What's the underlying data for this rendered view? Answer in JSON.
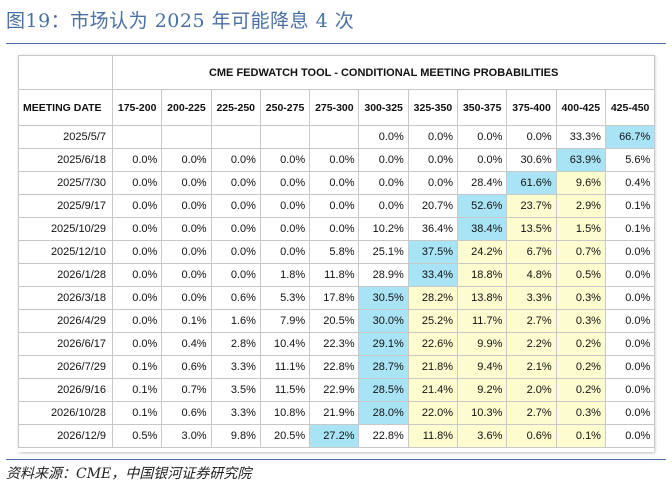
{
  "figure": {
    "title": "图19：市场认为 2025 年可能降息 4 次",
    "source": "资料来源：CME，中国银河证券研究院"
  },
  "table": {
    "group_header": "CME FEDWATCH TOOL - CONDITIONAL MEETING PROBABILITIES",
    "date_header": "MEETING DATE",
    "columns": [
      "175-200",
      "200-225",
      "225-250",
      "250-275",
      "275-300",
      "300-325",
      "325-350",
      "350-375",
      "375-400",
      "400-425",
      "425-450"
    ],
    "rows": [
      {
        "date": "2025/5/7",
        "values": [
          "",
          "",
          "",
          "",
          "",
          "0.0%",
          "0.0%",
          "0.0%",
          "0.0%",
          "33.3%",
          "66.7%"
        ],
        "max_col": 10
      },
      {
        "date": "2025/6/18",
        "values": [
          "0.0%",
          "0.0%",
          "0.0%",
          "0.0%",
          "0.0%",
          "0.0%",
          "0.0%",
          "0.0%",
          "30.6%",
          "63.9%",
          "5.6%"
        ],
        "max_col": 9
      },
      {
        "date": "2025/7/30",
        "values": [
          "0.0%",
          "0.0%",
          "0.0%",
          "0.0%",
          "0.0%",
          "0.0%",
          "0.0%",
          "28.4%",
          "61.6%",
          "9.6%",
          "0.4%"
        ],
        "max_col": 8
      },
      {
        "date": "2025/9/17",
        "values": [
          "0.0%",
          "0.0%",
          "0.0%",
          "0.0%",
          "0.0%",
          "0.0%",
          "20.7%",
          "52.6%",
          "23.7%",
          "2.9%",
          "0.1%"
        ],
        "max_col": 7
      },
      {
        "date": "2025/10/29",
        "values": [
          "0.0%",
          "0.0%",
          "0.0%",
          "0.0%",
          "0.0%",
          "10.2%",
          "36.4%",
          "38.4%",
          "13.5%",
          "1.5%",
          "0.1%"
        ],
        "max_col": 7
      },
      {
        "date": "2025/12/10",
        "values": [
          "0.0%",
          "0.0%",
          "0.0%",
          "0.0%",
          "5.8%",
          "25.1%",
          "37.5%",
          "24.2%",
          "6.7%",
          "0.7%",
          "0.0%"
        ],
        "max_col": 6
      },
      {
        "date": "2026/1/28",
        "values": [
          "0.0%",
          "0.0%",
          "0.0%",
          "1.8%",
          "11.8%",
          "28.9%",
          "33.4%",
          "18.8%",
          "4.8%",
          "0.5%",
          "0.0%"
        ],
        "max_col": 6
      },
      {
        "date": "2026/3/18",
        "values": [
          "0.0%",
          "0.0%",
          "0.6%",
          "5.3%",
          "17.8%",
          "30.5%",
          "28.2%",
          "13.8%",
          "3.3%",
          "0.3%",
          "0.0%"
        ],
        "max_col": 5
      },
      {
        "date": "2026/4/29",
        "values": [
          "0.0%",
          "0.1%",
          "1.6%",
          "7.9%",
          "20.5%",
          "30.0%",
          "25.2%",
          "11.7%",
          "2.7%",
          "0.3%",
          "0.0%"
        ],
        "max_col": 5
      },
      {
        "date": "2026/6/17",
        "values": [
          "0.0%",
          "0.4%",
          "2.8%",
          "10.4%",
          "22.3%",
          "29.1%",
          "22.6%",
          "9.9%",
          "2.2%",
          "0.2%",
          "0.0%"
        ],
        "max_col": 5
      },
      {
        "date": "2026/7/29",
        "values": [
          "0.1%",
          "0.6%",
          "3.3%",
          "11.1%",
          "22.8%",
          "28.7%",
          "21.8%",
          "9.4%",
          "2.1%",
          "0.2%",
          "0.0%"
        ],
        "max_col": 5
      },
      {
        "date": "2026/9/16",
        "values": [
          "0.1%",
          "0.7%",
          "3.5%",
          "11.5%",
          "22.9%",
          "28.5%",
          "21.4%",
          "9.2%",
          "2.0%",
          "0.2%",
          "0.0%"
        ],
        "max_col": 5
      },
      {
        "date": "2026/10/28",
        "values": [
          "0.1%",
          "0.6%",
          "3.3%",
          "10.8%",
          "21.9%",
          "28.0%",
          "22.0%",
          "10.3%",
          "2.7%",
          "0.3%",
          "0.0%"
        ],
        "max_col": 5
      },
      {
        "date": "2026/12/9",
        "values": [
          "0.5%",
          "3.0%",
          "9.8%",
          "20.5%",
          "27.2%",
          "22.8%",
          "11.8%",
          "3.6%",
          "0.6%",
          "0.1%",
          "0.0%"
        ],
        "max_col": 4
      }
    ],
    "colors": {
      "highlight": "#a8e4f5",
      "shade": "#fcfccf",
      "header_text": "#111111",
      "title": "#4a6fa5"
    }
  }
}
